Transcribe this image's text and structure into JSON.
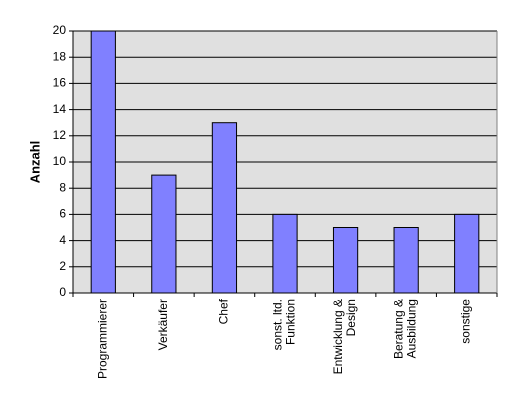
{
  "chart_data": {
    "type": "bar",
    "y_label": "Anzahl",
    "categories": [
      "Programmierer",
      "Verkäufer",
      "Chef",
      "sonst. ltd.\nFunktion",
      "Entwicklung &\nDesign",
      "Beratung &\nAusbildung",
      "sonstige"
    ],
    "values": [
      20,
      9,
      13,
      6,
      5,
      5,
      6
    ],
    "color": "#8080ff",
    "ylim": [
      0,
      20
    ],
    "yticks": [
      0,
      2,
      4,
      6,
      8,
      10,
      12,
      14,
      16,
      18,
      20
    ],
    "grid": true
  }
}
